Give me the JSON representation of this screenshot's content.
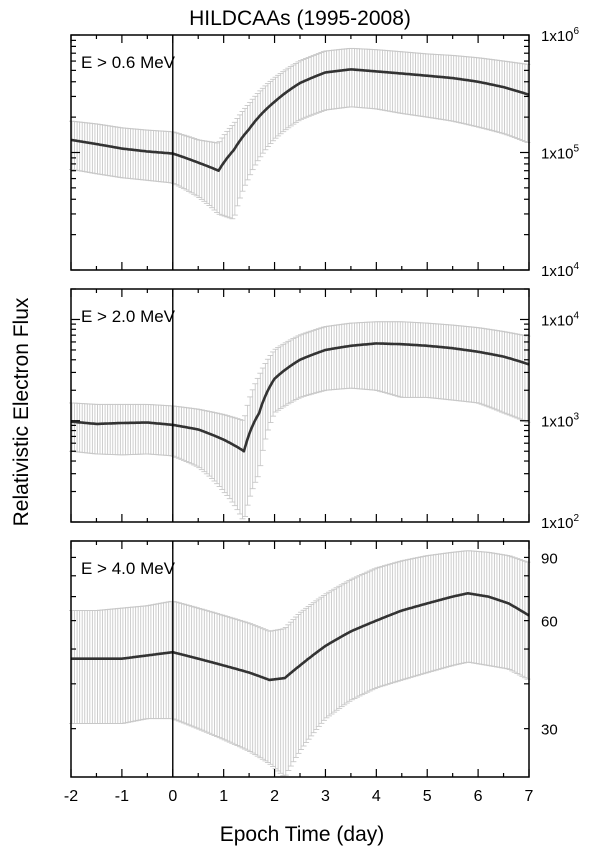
{
  "title": "HILDCAAs (1995-2008)",
  "xlabel": "Epoch Time (day)",
  "ylabel": "Relativistic Electron Flux",
  "colors": {
    "mean_line": "#333333",
    "error_bars": "#c8c8c8",
    "frame": "#000000"
  },
  "chart_data": [
    {
      "type": "line",
      "label": "E > 0.6 MeV",
      "yscale": "log",
      "ylim": [
        10000,
        1000000
      ],
      "xlim": [
        -2,
        7
      ],
      "y_tick_labels": [
        {
          "value": 10000,
          "mantissa": "1x10",
          "exp": "4"
        },
        {
          "value": 100000,
          "mantissa": "1x10",
          "exp": "5"
        },
        {
          "value": 1000000,
          "mantissa": "1x10",
          "exp": "6"
        }
      ],
      "epoch_marker_x": 0,
      "x": [
        -2,
        -1.5,
        -1,
        -0.5,
        0,
        0.5,
        0.9,
        1.2,
        1.5,
        2,
        2.5,
        3,
        3.5,
        4,
        4.5,
        5,
        5.5,
        6,
        6.5,
        7
      ],
      "mean": [
        128000,
        118000,
        108000,
        102000,
        98000,
        82000,
        70000,
        105000,
        158000,
        270000,
        390000,
        480000,
        510000,
        490000,
        470000,
        450000,
        430000,
        400000,
        360000,
        310000
      ],
      "err_low": [
        72000,
        66000,
        61000,
        58000,
        55000,
        42000,
        30000,
        27000,
        62000,
        130000,
        190000,
        230000,
        245000,
        235000,
        215000,
        200000,
        185000,
        165000,
        145000,
        120000
      ],
      "err_high": [
        185000,
        175000,
        162000,
        155000,
        150000,
        128000,
        120000,
        175000,
        260000,
        430000,
        600000,
        730000,
        770000,
        750000,
        720000,
        690000,
        670000,
        640000,
        600000,
        560000
      ]
    },
    {
      "type": "line",
      "label": "E > 2.0 MeV",
      "yscale": "log",
      "ylim": [
        100,
        20000
      ],
      "xlim": [
        -2,
        7
      ],
      "y_tick_labels": [
        {
          "value": 100,
          "mantissa": "1x10",
          "exp": "2"
        },
        {
          "value": 1000,
          "mantissa": "1x10",
          "exp": "3"
        },
        {
          "value": 10000,
          "mantissa": "1x10",
          "exp": "4"
        }
      ],
      "epoch_marker_x": 0,
      "x": [
        -2,
        -1.5,
        -1,
        -0.5,
        0,
        0.5,
        1,
        1.4,
        1.7,
        2,
        2.5,
        3,
        3.5,
        4,
        4.5,
        5,
        5.5,
        6,
        6.5,
        7
      ],
      "mean": [
        980,
        930,
        950,
        960,
        910,
        820,
        650,
        500,
        1200,
        2600,
        4000,
        5000,
        5500,
        5800,
        5700,
        5500,
        5200,
        4800,
        4300,
        3600
      ],
      "err_low": [
        500,
        470,
        460,
        470,
        450,
        350,
        200,
        100,
        300,
        1200,
        1700,
        2000,
        2100,
        2000,
        1700,
        1700,
        1600,
        1500,
        1200,
        950
      ],
      "err_high": [
        1500,
        1450,
        1450,
        1450,
        1400,
        1300,
        1150,
        1000,
        2800,
        5000,
        7000,
        8500,
        9200,
        9500,
        9500,
        9200,
        8800,
        8300,
        7600,
        6800
      ]
    },
    {
      "type": "line",
      "label": "E > 4.0 MeV",
      "yscale": "log",
      "ylim": [
        22,
        100
      ],
      "xlim": [
        -2,
        7
      ],
      "x_tick_labels": [
        "-2",
        "-1",
        "0",
        "1",
        "2",
        "3",
        "4",
        "5",
        "6",
        "7"
      ],
      "y_tick_labels": [
        {
          "value": 30,
          "mantissa": "30",
          "exp": ""
        },
        {
          "value": 60,
          "mantissa": "60",
          "exp": ""
        },
        {
          "value": 90,
          "mantissa": "90",
          "exp": ""
        }
      ],
      "epoch_marker_x": 0,
      "x": [
        -2,
        -1.5,
        -1,
        -0.5,
        0,
        0.5,
        1,
        1.5,
        1.9,
        2.2,
        2.5,
        3,
        3.5,
        4,
        4.5,
        5,
        5.5,
        5.8,
        6.2,
        6.6,
        7
      ],
      "mean": [
        47,
        47,
        47,
        48,
        49,
        47,
        45,
        43,
        41,
        41.5,
        45,
        51,
        56,
        60,
        64,
        67,
        70,
        71.5,
        70,
        67,
        62
      ],
      "err_low": [
        31,
        31,
        31,
        32,
        32,
        30,
        28,
        26,
        24,
        22,
        26,
        32,
        36,
        39,
        41,
        43,
        45,
        46,
        45,
        44,
        41
      ],
      "err_high": [
        64,
        64,
        65,
        66,
        68,
        65,
        62,
        59,
        56,
        57,
        63,
        71,
        78,
        84,
        88,
        91,
        93,
        94,
        93,
        91,
        87
      ]
    }
  ]
}
